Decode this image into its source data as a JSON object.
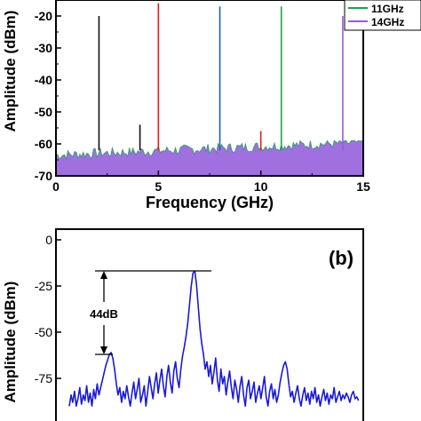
{
  "chart_data": [
    {
      "type": "line",
      "xlabel": "Frequency (GHz)",
      "ylabel": "Amplitude (dBm)",
      "xlim": [
        0,
        15
      ],
      "ylim": [
        -70,
        -15
      ],
      "x_ticks": [
        "0",
        "5",
        "10",
        "15"
      ],
      "y_ticks": [
        "-70",
        "-60",
        "-50",
        "-40",
        "-30",
        "-20"
      ],
      "grid": false,
      "legend_position": "top-right",
      "legend": [
        {
          "label": "11GHz",
          "color": "#1aa34a"
        },
        {
          "label": "14GHz",
          "color": "#9b59d6"
        }
      ],
      "noise_floor_dbm": [
        -66,
        -59
      ],
      "peaks": [
        {
          "x": 2.1,
          "y": -20,
          "color": "#111111"
        },
        {
          "x": 4.1,
          "y": -54,
          "color": "#111111"
        },
        {
          "x": 5.0,
          "y": -16,
          "color": "#e0201b"
        },
        {
          "x": 8.0,
          "y": -17,
          "color": "#1f5fbf"
        },
        {
          "x": 10.0,
          "y": -56,
          "color": "#e0201b"
        },
        {
          "x": 11.0,
          "y": -17,
          "color": "#1aa34a"
        },
        {
          "x": 14.0,
          "y": -20,
          "color": "#9b59d6"
        }
      ],
      "fill_color": "#a070e0"
    },
    {
      "type": "line",
      "panel_label": "(b)",
      "ylabel": "Amplitude (dBm)",
      "y_ticks": [
        "0",
        "-25",
        "-50",
        "-75"
      ],
      "ylim": [
        -90,
        0
      ],
      "annotation": "44dB",
      "main_peak_dbm": -17,
      "side_peak_dbm": -61,
      "line_color": "#1a1ad6",
      "x": [
        0.0,
        0.6,
        1.2,
        1.8,
        2.4,
        3.0,
        3.6,
        4.2,
        4.8,
        5.4,
        6.0,
        6.6,
        7.2,
        7.8,
        8.4,
        9.0,
        9.6,
        10.2,
        10.8,
        11.4,
        12.0,
        12.6,
        13.2,
        13.8,
        14.4,
        15.0,
        15.6,
        16.2,
        16.8,
        17.4,
        18.0,
        18.6,
        19.2,
        19.8,
        20.4,
        21.0,
        21.6,
        22.2,
        22.8,
        23.4,
        24.0,
        24.6,
        25.2,
        25.8,
        26.4,
        27.0,
        27.6,
        28.2,
        28.8,
        29.4,
        30.0,
        30.6,
        31.2,
        31.8,
        32.4,
        33.0,
        33.6,
        34.2,
        34.8,
        35.4,
        36.0,
        36.6,
        37.2,
        37.8,
        38.4,
        39.0,
        39.6,
        40.2,
        40.8,
        41.4,
        42.0,
        42.6,
        43.2,
        43.8,
        44.4,
        45.0,
        45.6,
        46.2,
        46.8,
        47.4,
        48.0,
        48.6,
        49.2,
        49.8,
        50.4,
        51.0,
        51.6,
        52.2,
        52.8,
        53.4,
        54.0,
        54.6,
        55.2,
        55.8,
        56.4,
        57.0,
        57.6,
        58.2,
        58.8,
        59.4,
        60.0,
        60.6,
        61.2,
        61.8,
        62.4,
        63.0,
        63.6,
        64.2,
        64.8,
        65.4,
        66.0,
        66.6,
        67.2,
        67.8,
        68.4,
        69.0,
        69.6,
        70.2,
        70.8,
        71.4,
        72.0,
        72.6,
        73.2,
        73.8,
        74.4,
        75.0,
        75.6,
        76.2,
        76.8,
        77.4,
        78.0,
        78.6,
        79.2,
        79.8,
        80.4,
        81.0,
        81.6,
        82.2,
        82.8,
        83.4,
        84.0,
        84.6,
        85.2,
        85.8,
        86.4,
        87.0,
        87.6,
        88.2,
        88.8,
        89.4,
        90.0,
        90.6,
        91.2,
        91.8,
        92.4,
        93.0,
        93.6,
        94.2,
        94.8,
        95.4,
        96.0,
        96.6,
        97.2,
        97.8,
        98.4,
        99.0,
        99.6
      ],
      "y": [
        -90,
        -84,
        -88,
        -82,
        -90,
        -86,
        -80,
        -89,
        -84,
        -87,
        -79,
        -88,
        -83,
        -90,
        -81,
        -86,
        -78,
        -84,
        -80,
        -76,
        -72,
        -68,
        -65,
        -62,
        -61,
        -64,
        -70,
        -78,
        -84,
        -80,
        -88,
        -82,
        -86,
        -79,
        -85,
        -90,
        -83,
        -77,
        -86,
        -81,
        -75,
        -88,
        -84,
        -79,
        -90,
        -82,
        -74,
        -80,
        -86,
        -78,
        -72,
        -83,
        -76,
        -70,
        -79,
        -85,
        -74,
        -68,
        -77,
        -83,
        -71,
        -66,
        -75,
        -80,
        -70,
        -63,
        -58,
        -52,
        -45,
        -35,
        -25,
        -18,
        -17,
        -24,
        -36,
        -48,
        -56,
        -62,
        -70,
        -66,
        -74,
        -68,
        -78,
        -72,
        -64,
        -76,
        -82,
        -70,
        -78,
        -74,
        -84,
        -77,
        -71,
        -80,
        -86,
        -76,
        -81,
        -88,
        -79,
        -74,
        -84,
        -90,
        -80,
        -76,
        -86,
        -82,
        -77,
        -88,
        -83,
        -79,
        -86,
        -80,
        -74,
        -85,
        -90,
        -82,
        -78,
        -86,
        -81,
        -88,
        -84,
        -77,
        -72,
        -68,
        -66,
        -70,
        -78,
        -85,
        -82,
        -88,
        -83,
        -79,
        -86,
        -90,
        -84,
        -80,
        -87,
        -83,
        -89,
        -82,
        -86,
        -80,
        -88,
        -84,
        -90,
        -85,
        -81,
        -87,
        -83,
        -89,
        -84,
        -86,
        -80,
        -88,
        -85,
        -82,
        -87,
        -84,
        -86,
        -83,
        -85,
        -88,
        -84,
        -82,
        -86,
        -85,
        -87
      ]
    }
  ]
}
